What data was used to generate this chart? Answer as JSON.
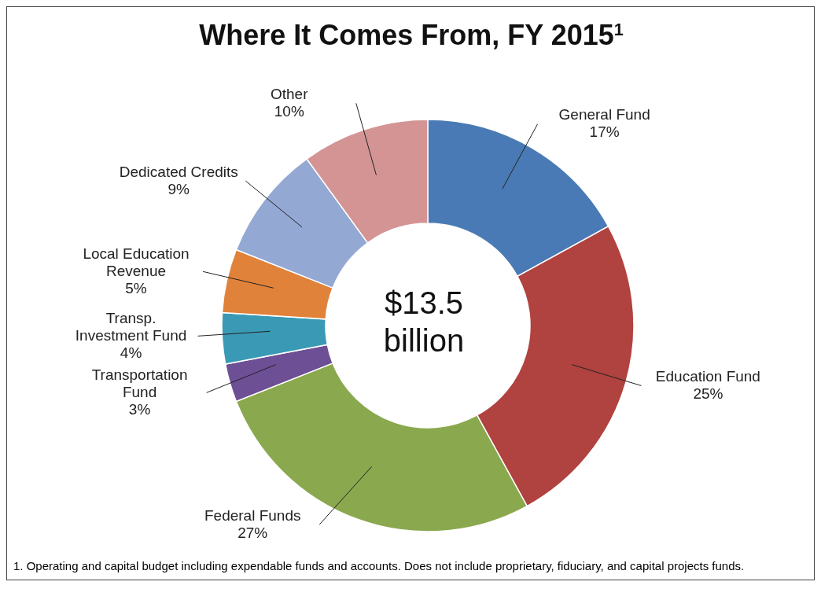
{
  "chart_data": {
    "type": "donut",
    "title": "Where It Comes From, FY 2015$^{1}$",
    "categories": [
      "General Fund",
      "Education Fund",
      "Federal Funds",
      "Transportation Fund",
      "Transp. Investment Fund",
      "Local Education Revenue",
      "Dedicated Credits",
      "Other"
    ],
    "values": [
      17,
      25,
      27,
      3,
      4,
      5,
      9,
      10
    ],
    "value_labels": [
      "17%",
      "25%",
      "27%",
      "3%",
      "4%",
      "5%",
      "9%",
      "10%"
    ],
    "colors": [
      "#4a7ab5",
      "#b0423f",
      "#8aa84e",
      "#6d4f95",
      "#3a9ab5",
      "#e0823a",
      "#94a8d4",
      "#d49494"
    ],
    "legend": false,
    "annotations": [
      "$13.5 billion",
      "1. Operating and capital budget including expendable funds and accounts.  Does not include proprietary, fiduciary, and capital projects funds."
    ]
  }
}
